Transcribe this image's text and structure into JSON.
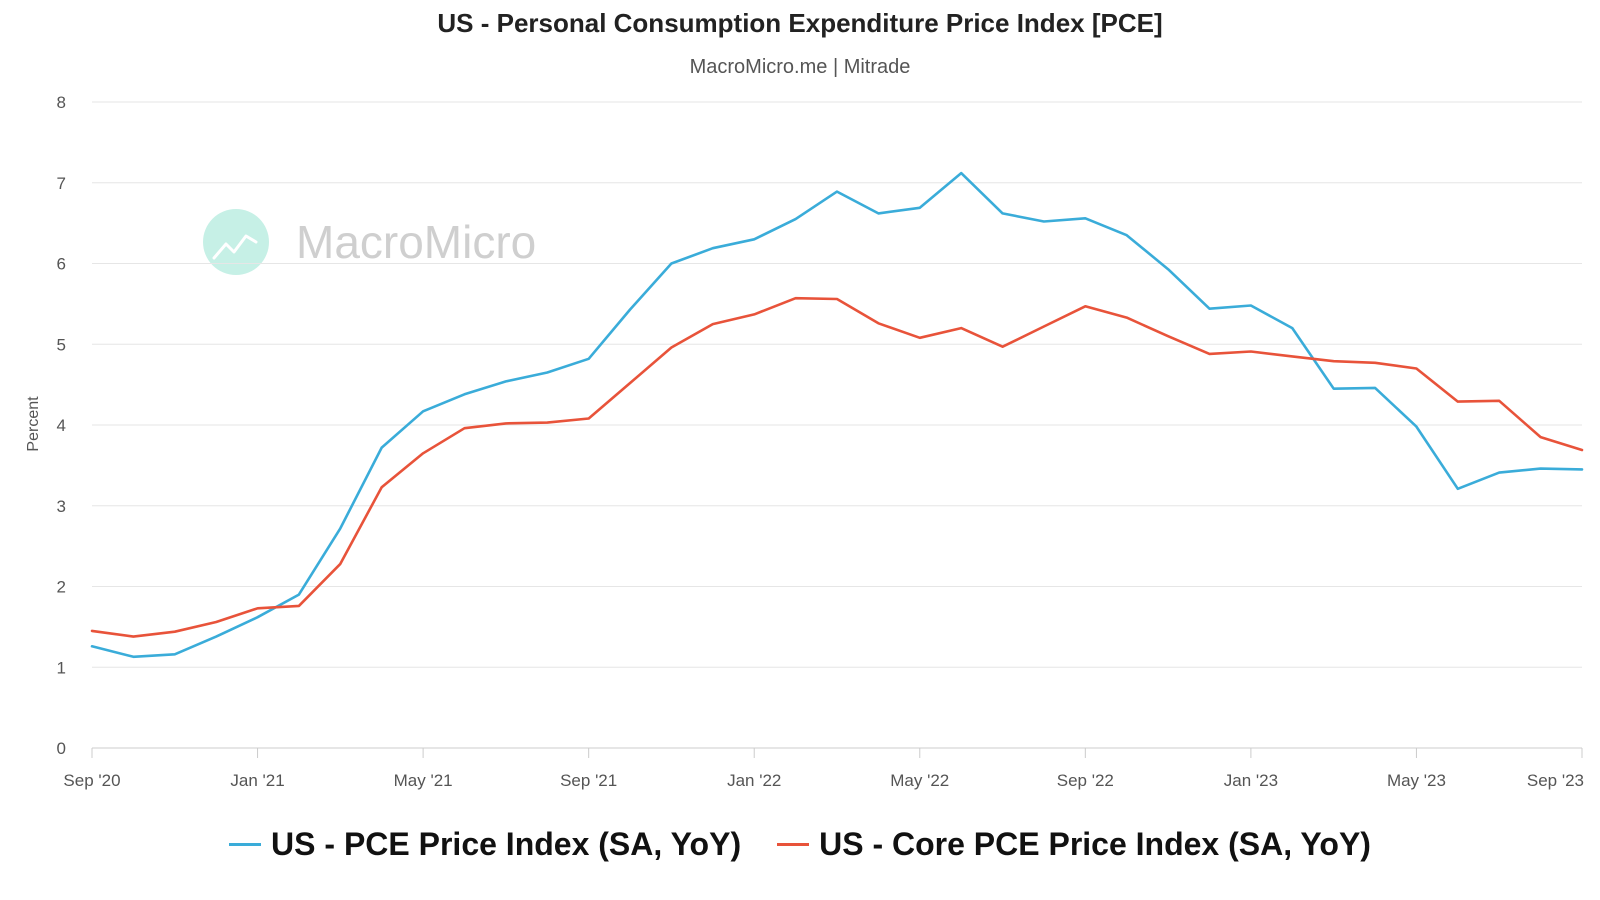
{
  "chart_data": {
    "type": "line",
    "title": "US - Personal Consumption Expenditure Price Index [PCE]",
    "subtitle": "MacroMicro.me | Mitrade",
    "ylabel": "Percent",
    "xlabel": "",
    "ylim": [
      0,
      8
    ],
    "yticks": [
      0,
      1,
      2,
      3,
      4,
      5,
      6,
      7,
      8
    ],
    "x_start": "Sep '20",
    "x_end": "Sep '23",
    "xtick_labels": [
      "Sep '20",
      "Jan '21",
      "May '21",
      "Sep '21",
      "Jan '22",
      "May '22",
      "Sep '22",
      "Jan '23",
      "May '23",
      "Sep '23"
    ],
    "xtick_index": [
      0,
      4,
      8,
      12,
      16,
      20,
      24,
      28,
      32,
      36
    ],
    "grid": true,
    "legend_position": "bottom",
    "x": [
      "2020-09",
      "2020-10",
      "2020-11",
      "2020-12",
      "2021-01",
      "2021-02",
      "2021-03",
      "2021-04",
      "2021-05",
      "2021-06",
      "2021-07",
      "2021-08",
      "2021-09",
      "2021-10",
      "2021-11",
      "2021-12",
      "2022-01",
      "2022-02",
      "2022-03",
      "2022-04",
      "2022-05",
      "2022-06",
      "2022-07",
      "2022-08",
      "2022-09",
      "2022-10",
      "2022-11",
      "2022-12",
      "2023-01",
      "2023-02",
      "2023-03",
      "2023-04",
      "2023-05",
      "2023-06",
      "2023-07",
      "2023-08",
      "2023-09"
    ],
    "series": [
      {
        "name": "US - PCE Price Index (SA, YoY)",
        "color": "#3aacd9",
        "values": [
          1.26,
          1.13,
          1.16,
          1.38,
          1.62,
          1.9,
          2.72,
          3.72,
          4.17,
          4.38,
          4.54,
          4.65,
          4.82,
          5.43,
          6.0,
          6.19,
          6.3,
          6.55,
          6.89,
          6.62,
          6.69,
          7.12,
          6.62,
          6.52,
          6.56,
          6.35,
          5.93,
          5.44,
          5.48,
          5.2,
          4.45,
          4.46,
          3.98,
          3.21,
          3.41,
          3.46,
          3.45
        ]
      },
      {
        "name": "US - Core PCE Price Index (SA, YoY)",
        "color": "#e8533a",
        "values": [
          1.45,
          1.38,
          1.44,
          1.56,
          1.73,
          1.76,
          2.28,
          3.23,
          3.65,
          3.96,
          4.02,
          4.03,
          4.08,
          4.52,
          4.96,
          5.25,
          5.37,
          5.57,
          5.56,
          5.26,
          5.08,
          5.2,
          4.97,
          5.22,
          5.47,
          5.33,
          5.1,
          4.88,
          4.91,
          4.85,
          4.79,
          4.77,
          4.7,
          4.29,
          4.3,
          3.85,
          3.69
        ]
      }
    ]
  },
  "watermark": {
    "text": "MacroMicro",
    "icon": "macromicro-logo-icon",
    "icon_color": "#c6f0e6"
  },
  "colors": {
    "grid": "#e6e6e6",
    "axis": "#cccccc",
    "text": "#555555"
  }
}
